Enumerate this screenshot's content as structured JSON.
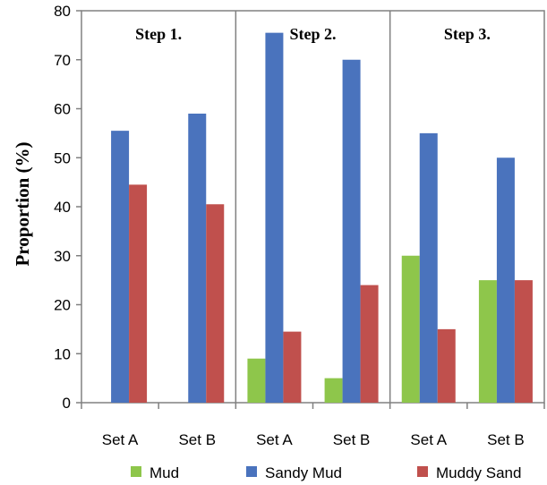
{
  "chart_data": {
    "type": "bar",
    "ylabel": "Proportion (%)",
    "xlabel": "",
    "ylim": [
      0,
      80
    ],
    "yticks": [
      0,
      10,
      20,
      30,
      40,
      50,
      60,
      70,
      80
    ],
    "grid": false,
    "legend_position": "bottom",
    "groups": [
      {
        "label": "Step 1.",
        "categories": [
          "Set A",
          "Set B"
        ]
      },
      {
        "label": "Step 2.",
        "categories": [
          "Set A",
          "Set B"
        ]
      },
      {
        "label": "Step 3.",
        "categories": [
          "Set A",
          "Set B"
        ]
      }
    ],
    "categories": [
      "Set A",
      "Set B",
      "Set A",
      "Set B",
      "Set A",
      "Set B"
    ],
    "series": [
      {
        "name": "Mud",
        "color": "#8ec64b",
        "values": [
          0,
          0,
          9,
          5,
          30,
          25
        ]
      },
      {
        "name": "Sandy Mud",
        "color": "#4a73bd",
        "values": [
          55.5,
          59,
          75.5,
          70,
          55,
          50
        ]
      },
      {
        "name": "Muddy Sand",
        "color": "#c0504d",
        "values": [
          44.5,
          40.5,
          14.5,
          24,
          15,
          25
        ]
      }
    ]
  }
}
